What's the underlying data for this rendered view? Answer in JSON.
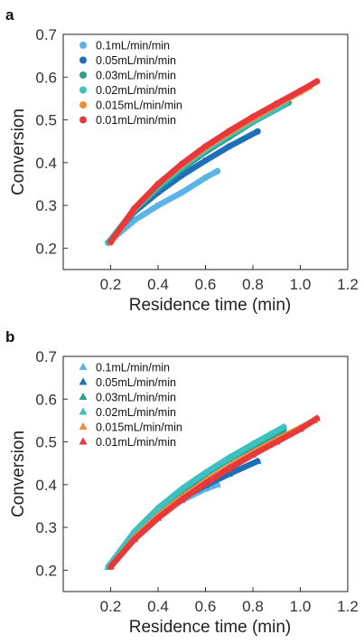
{
  "chart_data": [
    {
      "type": "scatter",
      "panel_label": "a",
      "marker": "circle",
      "xlabel": "Residence time (min)",
      "ylabel": "Conversion",
      "xlim": [
        0.0,
        1.2
      ],
      "ylim": [
        0.15,
        0.7
      ],
      "xticks": [
        "0.2",
        "0.4",
        "0.6",
        "0.8",
        "1.0",
        "1.2"
      ],
      "yticks": [
        "0.2",
        "0.3",
        "0.4",
        "0.5",
        "0.6",
        "0.7"
      ],
      "legend_position": "top-left",
      "grid": false,
      "series": [
        {
          "name": "0.1mL/min/min",
          "color": "#5ab4e5",
          "x": [
            0.19,
            0.3,
            0.4,
            0.5,
            0.6,
            0.65
          ],
          "y": [
            0.213,
            0.265,
            0.3,
            0.33,
            0.365,
            0.38
          ]
        },
        {
          "name": "0.05mL/min/min",
          "color": "#1f6fb8",
          "x": [
            0.19,
            0.3,
            0.4,
            0.5,
            0.6,
            0.7,
            0.82
          ],
          "y": [
            0.213,
            0.285,
            0.33,
            0.37,
            0.405,
            0.438,
            0.473
          ]
        },
        {
          "name": "0.03mL/min/min",
          "color": "#2ca089",
          "x": [
            0.19,
            0.3,
            0.4,
            0.5,
            0.6,
            0.7,
            0.8,
            0.9,
            0.95
          ],
          "y": [
            0.213,
            0.29,
            0.34,
            0.385,
            0.425,
            0.46,
            0.495,
            0.525,
            0.54
          ]
        },
        {
          "name": "0.02mL/min/min",
          "color": "#3cc0c0",
          "x": [
            0.19,
            0.3,
            0.4,
            0.5,
            0.6,
            0.7,
            0.8,
            0.9,
            0.94
          ],
          "y": [
            0.213,
            0.29,
            0.345,
            0.39,
            0.43,
            0.465,
            0.497,
            0.527,
            0.54
          ]
        },
        {
          "name": "0.015mL/min/min",
          "color": "#f08c3c",
          "x": [
            0.2,
            0.3,
            0.4,
            0.5,
            0.6,
            0.7,
            0.8,
            0.9,
            1.0,
            1.04
          ],
          "y": [
            0.213,
            0.292,
            0.35,
            0.395,
            0.435,
            0.47,
            0.503,
            0.535,
            0.565,
            0.578
          ]
        },
        {
          "name": "0.01mL/min/min",
          "color": "#e8393a",
          "x": [
            0.2,
            0.3,
            0.4,
            0.5,
            0.6,
            0.7,
            0.8,
            0.9,
            1.0,
            1.07
          ],
          "y": [
            0.215,
            0.293,
            0.35,
            0.397,
            0.438,
            0.474,
            0.507,
            0.538,
            0.568,
            0.59
          ]
        }
      ]
    },
    {
      "type": "scatter",
      "panel_label": "b",
      "marker": "triangle",
      "xlabel": "Residence time (min)",
      "ylabel": "Conversion",
      "xlim": [
        0.0,
        1.2
      ],
      "ylim": [
        0.15,
        0.7
      ],
      "xticks": [
        "0.2",
        "0.4",
        "0.6",
        "0.8",
        "1.0",
        "1.2"
      ],
      "yticks": [
        "0.2",
        "0.3",
        "0.4",
        "0.5",
        "0.6",
        "0.7"
      ],
      "legend_position": "top-left",
      "grid": false,
      "series": [
        {
          "name": "0.1mL/min/min",
          "color": "#5ab4e5",
          "x": [
            0.19,
            0.3,
            0.4,
            0.5,
            0.6,
            0.65
          ],
          "y": [
            0.208,
            0.28,
            0.33,
            0.363,
            0.39,
            0.4
          ]
        },
        {
          "name": "0.05mL/min/min",
          "color": "#1f6fb8",
          "x": [
            0.19,
            0.3,
            0.4,
            0.5,
            0.6,
            0.7,
            0.82
          ],
          "y": [
            0.208,
            0.28,
            0.33,
            0.368,
            0.398,
            0.425,
            0.455
          ]
        },
        {
          "name": "0.03mL/min/min",
          "color": "#2ca089",
          "x": [
            0.19,
            0.3,
            0.4,
            0.5,
            0.6,
            0.7,
            0.8,
            0.93
          ],
          "y": [
            0.208,
            0.285,
            0.34,
            0.385,
            0.425,
            0.46,
            0.49,
            0.528
          ]
        },
        {
          "name": "0.02mL/min/min",
          "color": "#3cc0c0",
          "x": [
            0.19,
            0.3,
            0.4,
            0.5,
            0.6,
            0.7,
            0.8,
            0.93
          ],
          "y": [
            0.208,
            0.29,
            0.345,
            0.39,
            0.428,
            0.463,
            0.495,
            0.535
          ]
        },
        {
          "name": "0.015mL/min/min",
          "color": "#f08c3c",
          "x": [
            0.2,
            0.3,
            0.4,
            0.5,
            0.6,
            0.7,
            0.8,
            0.9,
            1.0,
            1.06
          ],
          "y": [
            0.208,
            0.275,
            0.327,
            0.37,
            0.408,
            0.443,
            0.475,
            0.505,
            0.533,
            0.55
          ]
        },
        {
          "name": "0.01mL/min/min",
          "color": "#e8393a",
          "x": [
            0.2,
            0.3,
            0.4,
            0.5,
            0.6,
            0.7,
            0.8,
            0.9,
            1.0,
            1.07
          ],
          "y": [
            0.208,
            0.272,
            0.322,
            0.365,
            0.403,
            0.438,
            0.47,
            0.5,
            0.53,
            0.555
          ]
        }
      ]
    }
  ]
}
